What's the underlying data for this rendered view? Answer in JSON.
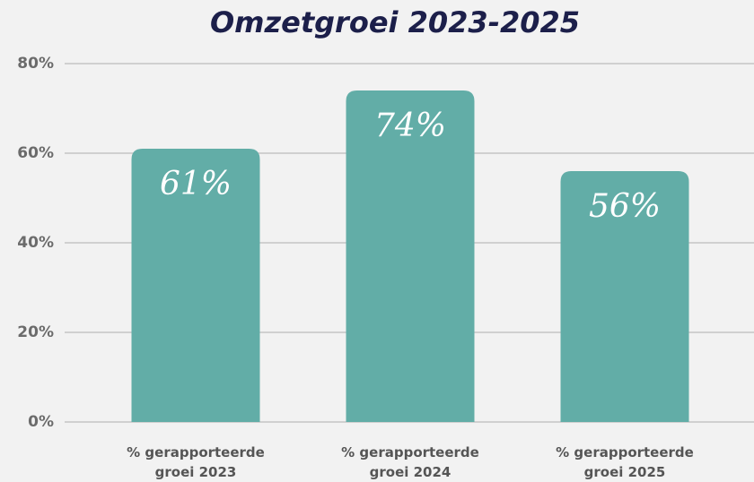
{
  "chart_data": {
    "type": "bar",
    "title": "Omzetgroei 2023-2025",
    "categories": [
      "% gerapporteerde groei 2023",
      "% gerapporteerde groei 2024",
      "% gerapporteerde groei 2025"
    ],
    "values": [
      61,
      74,
      56
    ],
    "value_labels": [
      "61%",
      "74%",
      "56%"
    ],
    "color": "#62ada7",
    "ylim": [
      0,
      80
    ],
    "yticks": [
      {
        "value": 0,
        "label": "0%"
      },
      {
        "value": 20,
        "label": "20%"
      },
      {
        "value": 40,
        "label": "40%"
      },
      {
        "value": 60,
        "label": "60%"
      },
      {
        "value": 80,
        "label": "80%"
      }
    ],
    "grid": true
  }
}
